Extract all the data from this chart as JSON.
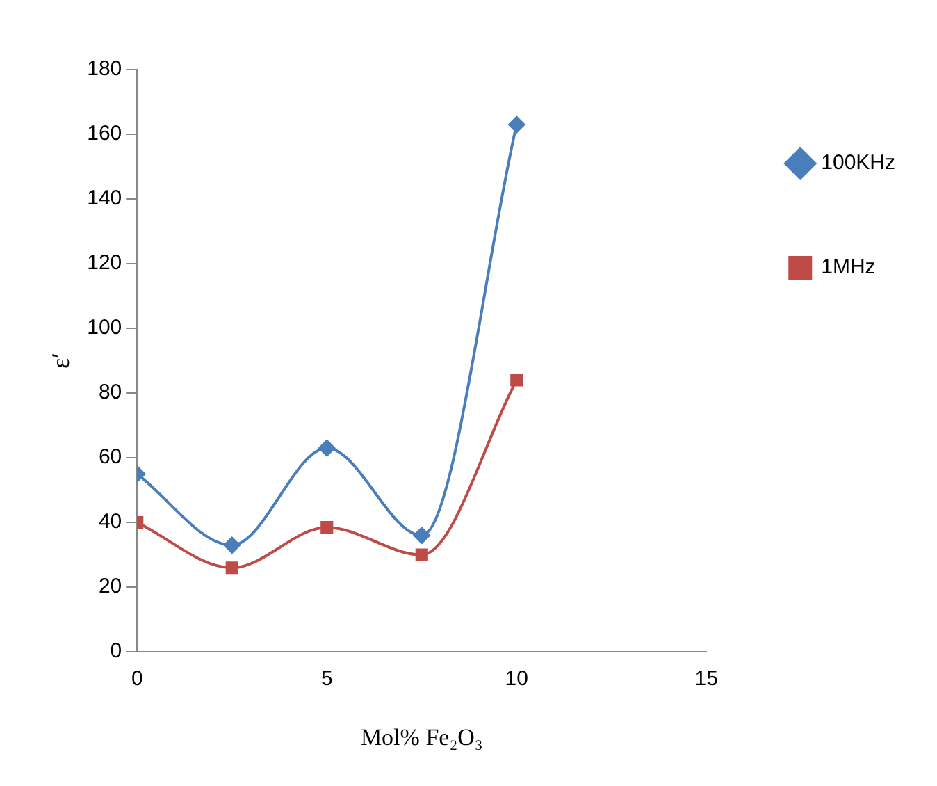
{
  "chart_data": {
    "type": "line",
    "xlabel": "Mol% Fe₂O₃",
    "ylabel": "ε′",
    "x": [
      0,
      2.5,
      5,
      7.5,
      10
    ],
    "series": [
      {
        "name": "100KHz",
        "color": "#4a7ebb",
        "marker": "diamond",
        "values": [
          55,
          33,
          63,
          36,
          163
        ]
      },
      {
        "name": "1MHz",
        "color": "#be4b48",
        "marker": "square",
        "values": [
          40,
          26,
          38.5,
          30,
          84
        ]
      }
    ],
    "xlim": [
      0,
      15
    ],
    "xticks": [
      0,
      5,
      10,
      15
    ],
    "ylim": [
      0,
      180
    ],
    "yticks": [
      0,
      20,
      40,
      60,
      80,
      100,
      120,
      140,
      160,
      180
    ],
    "grid": false,
    "legend": "right"
  }
}
